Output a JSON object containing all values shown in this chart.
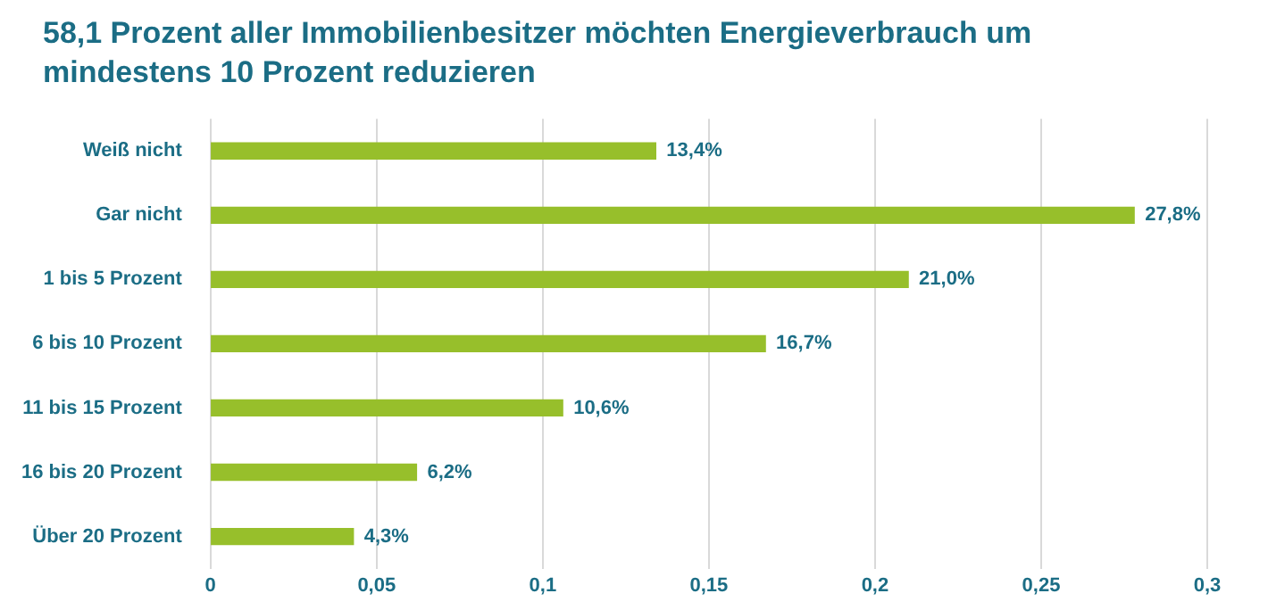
{
  "chart_data": {
    "type": "bar",
    "orientation": "horizontal",
    "title": "58,1 Prozent aller Immobilienbesitzer möchten Energieverbrauch um mindestens 10 Prozent reduzieren",
    "categories": [
      "Weiß nicht",
      "Gar nicht",
      "1 bis 5 Prozent",
      "6 bis 10 Prozent",
      "11 bis 15 Prozent",
      "16 bis 20 Prozent",
      "Über 20 Prozent"
    ],
    "values": [
      0.134,
      0.278,
      0.21,
      0.167,
      0.106,
      0.062,
      0.043
    ],
    "value_labels": [
      "13,4%",
      "27,8%",
      "21,0%",
      "16,7%",
      "10,6%",
      "6,2%",
      "4,3%"
    ],
    "color": "#97bf2b",
    "xlim": [
      0,
      0.3
    ],
    "xticks": [
      0,
      {
        "value": 0.05,
        "label": "0,05"
      },
      {
        "value": 0.1,
        "label": "0,1"
      },
      {
        "value": 0.15,
        "label": "0,15"
      },
      {
        "value": 0.2,
        "label": "0,2"
      },
      {
        "value": 0.25,
        "label": "0,25"
      },
      {
        "value": 0.3,
        "label": "0,3"
      }
    ],
    "grid": "x",
    "legend": false
  }
}
